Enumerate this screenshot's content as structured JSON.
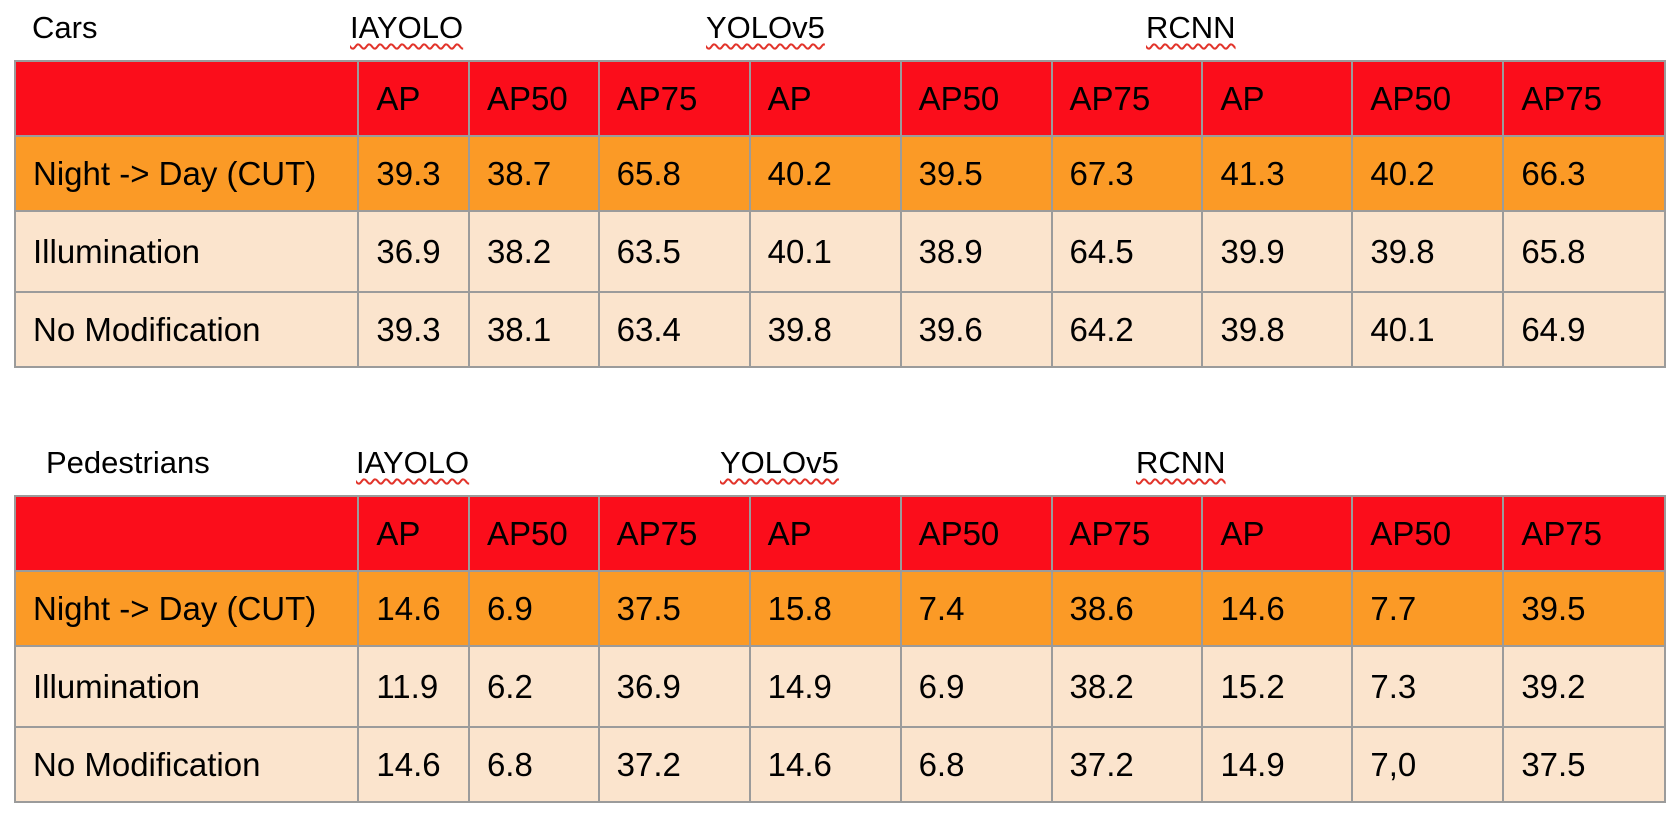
{
  "tables": [
    {
      "title": "Cars",
      "models": [
        "IAYOLO",
        "YOLOv5",
        "RCNN"
      ],
      "header": [
        "",
        "AP",
        "AP50",
        "AP75",
        "AP",
        "AP50",
        "AP75",
        "AP",
        "AP50",
        "AP75"
      ],
      "rows": [
        {
          "label": "Night -> Day (CUT)",
          "values": [
            "39.3",
            "38.7",
            "65.8",
            "40.2",
            "39.5",
            "67.3",
            "41.3",
            "40.2",
            "66.3"
          ]
        },
        {
          "label": "Illumination",
          "values": [
            "36.9",
            "38.2",
            "63.5",
            "40.1",
            "38.9",
            "64.5",
            "39.9",
            "39.8",
            "65.8"
          ]
        },
        {
          "label": "No Modification",
          "values": [
            "39.3",
            "38.1",
            "63.4",
            "39.8",
            "39.6",
            "64.2",
            "39.8",
            "40.1",
            "64.9"
          ]
        }
      ]
    },
    {
      "title": "Pedestrians",
      "models": [
        "IAYOLO",
        "YOLOv5",
        "RCNN"
      ],
      "header": [
        "",
        "AP",
        "AP50",
        "AP75",
        "AP",
        "AP50",
        "AP75",
        "AP",
        "AP50",
        "AP75"
      ],
      "rows": [
        {
          "label": "Night -> Day (CUT)",
          "values": [
            "14.6",
            "6.9",
            "37.5",
            "15.8",
            "7.4",
            "38.6",
            "14.6",
            "7.7",
            "39.5"
          ]
        },
        {
          "label": "Illumination",
          "values": [
            "11.9",
            "6.2",
            "36.9",
            "14.9",
            "6.9",
            "38.2",
            "15.2",
            "7.3",
            "39.2"
          ]
        },
        {
          "label": "No Modification",
          "values": [
            "14.6",
            "6.8",
            "37.2",
            "14.6",
            "6.8",
            "37.2",
            "14.9",
            "7,0",
            "37.5"
          ]
        }
      ]
    }
  ],
  "colors": {
    "header": "#fb0d1b",
    "highlight_row": "#fb9a26",
    "light_row": "#fbe4cd",
    "border": "#9b9b9b",
    "spellcheck_underline": "#e2342b"
  }
}
